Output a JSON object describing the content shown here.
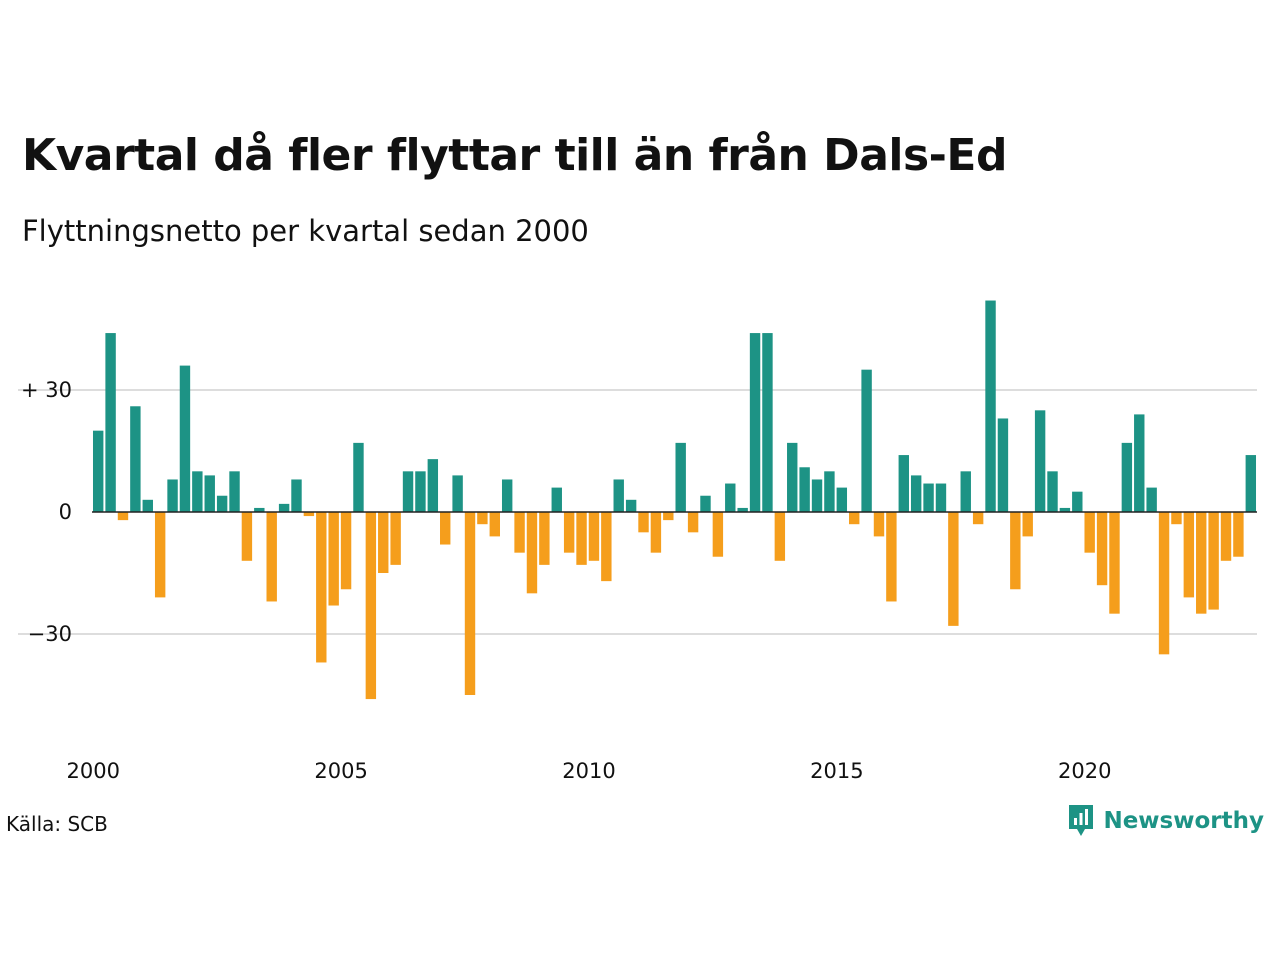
{
  "title": "Kvartal då fler flyttar till än från Dals-Ed",
  "subtitle": "Flyttningsnetto per kvartal sedan 2000",
  "source": "Källa: SCB",
  "brand": {
    "name": "Newsworthy",
    "icon": "newsworthy-logo-icon"
  },
  "colors": {
    "positive": "#1d9385",
    "negative": "#f59e1c",
    "grid": "#dddddd",
    "zero": "#222222"
  },
  "chart_data": {
    "type": "bar",
    "title": "Kvartal då fler flyttar till än från Dals-Ed",
    "subtitle": "Flyttningsnetto per kvartal sedan 2000",
    "xlabel": "",
    "ylabel": "",
    "x_start": 2000,
    "quarters_per_year": 4,
    "x_ticks": [
      {
        "value": 2000,
        "label": "2000"
      },
      {
        "value": 2005,
        "label": "2005"
      },
      {
        "value": 2010,
        "label": "2010"
      },
      {
        "value": 2015,
        "label": "2015"
      },
      {
        "value": 2020,
        "label": "2020"
      }
    ],
    "y_ticks": [
      {
        "value": 30,
        "label": "+ 30"
      },
      {
        "value": 0,
        "label": "0"
      },
      {
        "value": -30,
        "label": "−30"
      }
    ],
    "ylim": [
      -55,
      52
    ],
    "grid": true,
    "values": [
      20,
      44,
      -2,
      26,
      3,
      -21,
      8,
      36,
      10,
      9,
      4,
      10,
      -12,
      1,
      -22,
      2,
      8,
      -1,
      -37,
      -23,
      -19,
      17,
      -46,
      -15,
      -13,
      10,
      10,
      13,
      -8,
      9,
      -45,
      -3,
      -6,
      8,
      -10,
      -20,
      -13,
      6,
      -10,
      -13,
      -12,
      -17,
      8,
      3,
      -5,
      -10,
      -2,
      17,
      -5,
      4,
      -11,
      7,
      1,
      44,
      44,
      -12,
      17,
      11,
      8,
      10,
      6,
      -3,
      35,
      -6,
      -22,
      14,
      9,
      7,
      7,
      -28,
      10,
      -3,
      52,
      23,
      -19,
      -6,
      25,
      10,
      1,
      5,
      -10,
      -18,
      -25,
      17,
      24,
      6,
      -35,
      -3,
      -21,
      -25,
      -24,
      -12,
      -11,
      14
    ]
  }
}
